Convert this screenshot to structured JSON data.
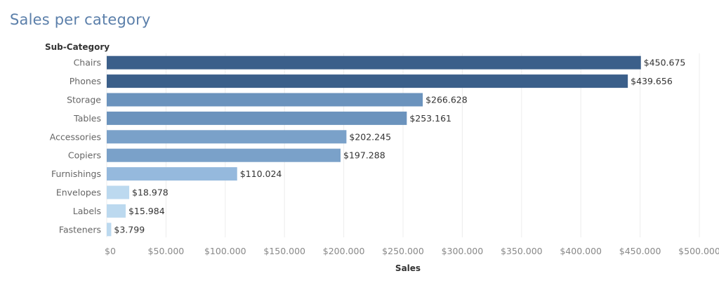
{
  "title": "Sales per category",
  "chart_data": {
    "type": "bar",
    "orientation": "horizontal",
    "title": "Sales per category",
    "ylabel": "Sub-Category",
    "xlabel": "Sales",
    "xlim": [
      0,
      500000
    ],
    "x_ticks": [
      0,
      50000,
      100000,
      150000,
      200000,
      250000,
      300000,
      350000,
      400000,
      450000,
      500000
    ],
    "x_tick_labels": [
      "$0",
      "$50.000",
      "$100.000",
      "$150.000",
      "$200.000",
      "$250.000",
      "$300.000",
      "$350.000",
      "$400.000",
      "$450.000",
      "$500.000"
    ],
    "categories": [
      "Chairs",
      "Phones",
      "Storage",
      "Tables",
      "Accessories",
      "Copiers",
      "Furnishings",
      "Envelopes",
      "Labels",
      "Fasteners"
    ],
    "values": [
      450675,
      439656,
      266628,
      253161,
      202245,
      197288,
      110024,
      18978,
      15984,
      3799
    ],
    "value_labels": [
      "$450.675",
      "$439.656",
      "$266.628",
      "$253.161",
      "$202.245",
      "$197.288",
      "$110.024",
      "$18.978",
      "$15.984",
      "$3.799"
    ],
    "colors": [
      "#3b5f8a",
      "#3b5f8a",
      "#6b93bd",
      "#6b93bd",
      "#7aa1c9",
      "#7aa1c9",
      "#95b9dd",
      "#bcd9ef",
      "#bcd9ef",
      "#bcd9ef"
    ],
    "grid": true
  }
}
